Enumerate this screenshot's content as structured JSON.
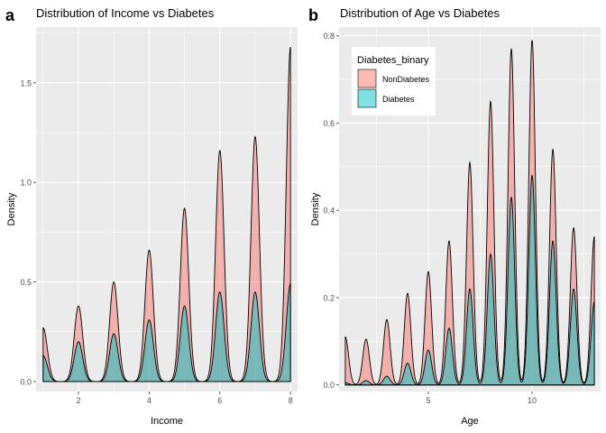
{
  "colors": {
    "panel_bg": "#EBEBEB",
    "grid": "#FFFFFF",
    "non_diabetes": "#F8766D",
    "diabetes": "#00BFC4",
    "outline": "#000000",
    "text": "#333333"
  },
  "chart_data": [
    {
      "panel_tag": "a",
      "type": "area",
      "title": "Distribution of Income vs Diabetes",
      "xlabel": "Income",
      "ylabel": "Density",
      "xlim": [
        0.8,
        8.2
      ],
      "ylim": [
        -0.05,
        1.78
      ],
      "xticks": [
        2,
        4,
        6,
        8
      ],
      "yticks": [
        0.0,
        0.5,
        1.0,
        1.5
      ],
      "ytick_labels": [
        "0.0",
        "0.5",
        "1.0",
        "1.5"
      ],
      "grid": true,
      "legend": "none",
      "category_x": [
        1,
        2,
        3,
        4,
        5,
        6,
        7,
        8
      ],
      "series": [
        {
          "name": "NonDiabetes",
          "values": [
            0.27,
            0.38,
            0.5,
            0.66,
            0.87,
            1.16,
            1.23,
            1.68
          ]
        },
        {
          "name": "Diabetes",
          "values": [
            0.13,
            0.2,
            0.24,
            0.31,
            0.38,
            0.45,
            0.45,
            0.49
          ]
        }
      ]
    },
    {
      "panel_tag": "b",
      "type": "area",
      "title": "Distribution of Age vs Diabetes",
      "xlabel": "Age",
      "ylabel": "Density",
      "xlim": [
        0.7,
        13.3
      ],
      "ylim": [
        -0.015,
        0.82
      ],
      "xticks": [
        5,
        10
      ],
      "yticks": [
        0.0,
        0.2,
        0.4,
        0.6,
        0.8
      ],
      "ytick_labels": [
        "0.0",
        "0.2",
        "0.4",
        "0.6",
        "0.8"
      ],
      "grid": true,
      "legend": "top-left",
      "legend_title": "Diabetes_binary",
      "category_x": [
        1,
        2,
        3,
        4,
        5,
        6,
        7,
        8,
        9,
        10,
        11,
        12,
        13
      ],
      "series": [
        {
          "name": "NonDiabetes",
          "values": [
            0.11,
            0.105,
            0.15,
            0.21,
            0.26,
            0.33,
            0.51,
            0.65,
            0.77,
            0.79,
            0.54,
            0.36,
            0.34
          ]
        },
        {
          "name": "Diabetes",
          "values": [
            0.005,
            0.01,
            0.02,
            0.05,
            0.08,
            0.13,
            0.22,
            0.3,
            0.43,
            0.48,
            0.33,
            0.22,
            0.19
          ]
        }
      ]
    }
  ]
}
